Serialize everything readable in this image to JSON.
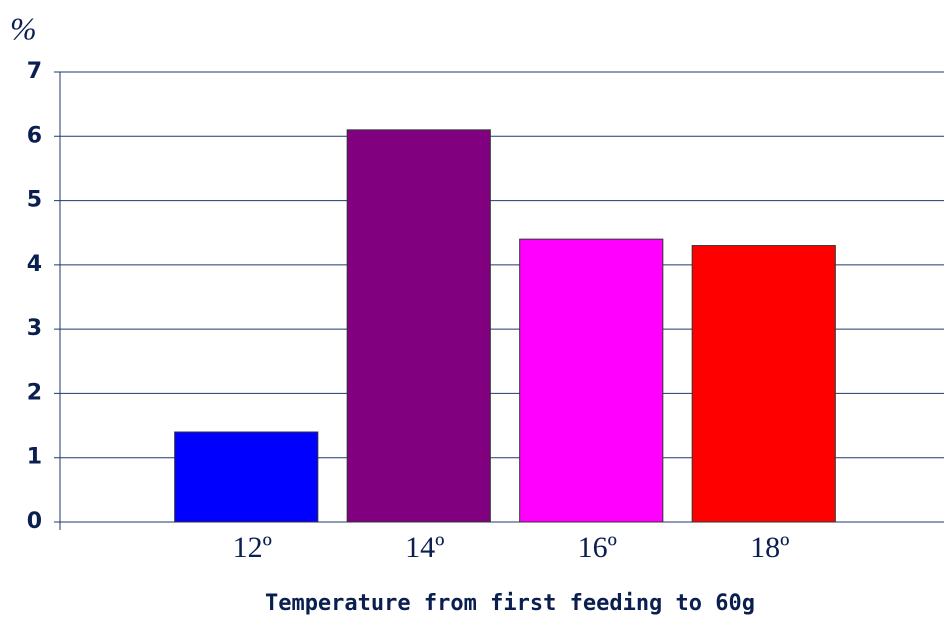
{
  "chart_data": {
    "type": "bar",
    "y_label": "%",
    "x_label": "Temperature from first feeding to 60g",
    "categories": [
      "12º",
      "14º",
      "16º",
      "18º"
    ],
    "values": [
      1.4,
      6.1,
      4.4,
      4.3
    ],
    "colors": [
      "#0000ff",
      "#800080",
      "#ff00ff",
      "#ff0000"
    ],
    "ylim": [
      0,
      7
    ],
    "yticks": [
      0,
      1,
      2,
      3,
      4,
      5,
      6,
      7
    ],
    "grid": true
  }
}
